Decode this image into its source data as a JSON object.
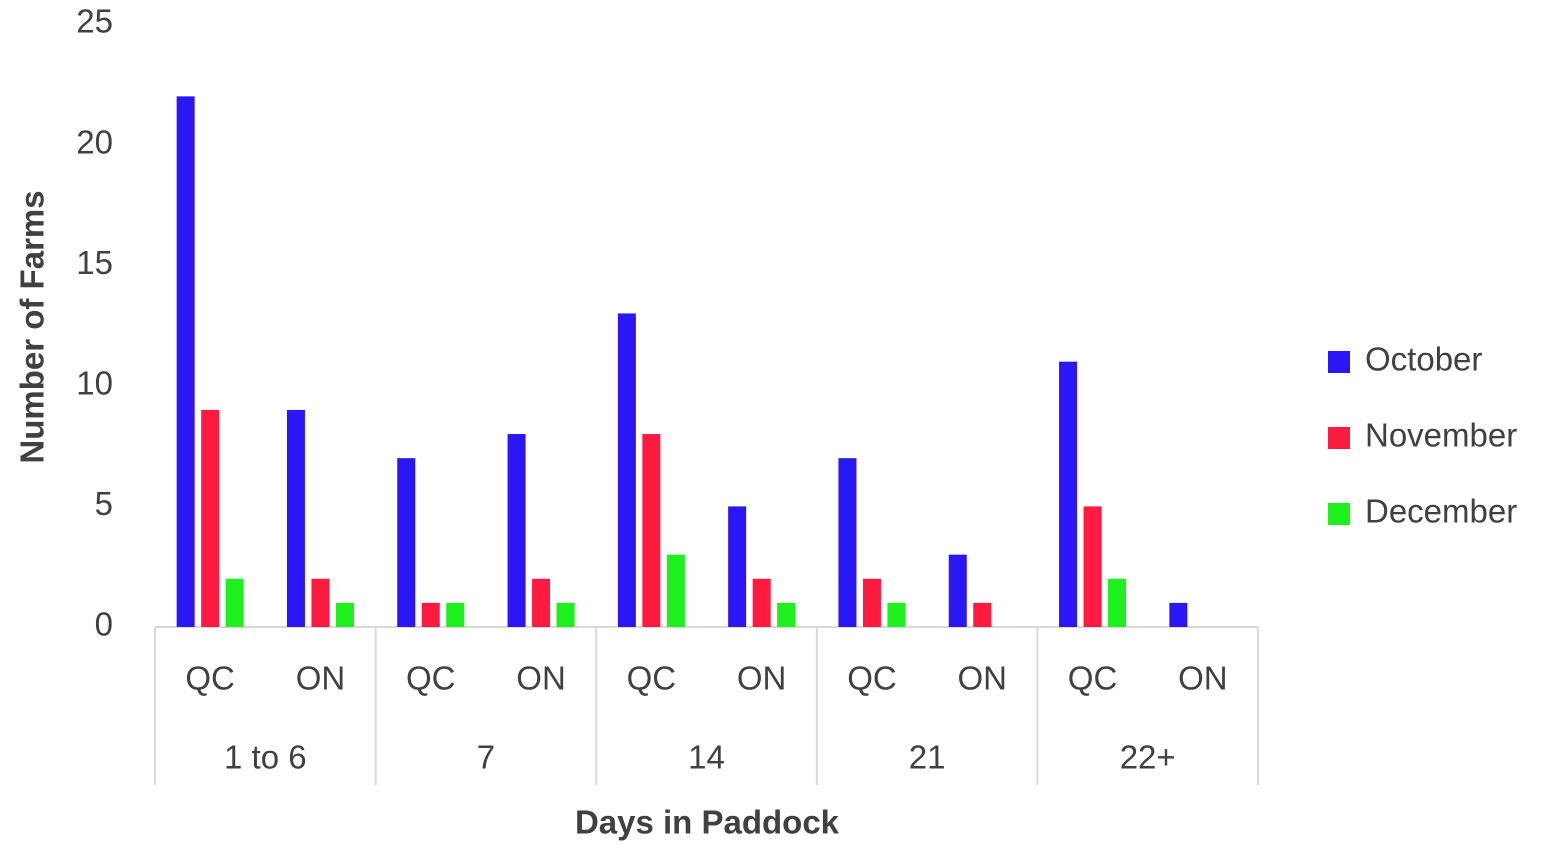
{
  "chart_data": {
    "type": "bar",
    "xlabel": "Days  in Paddock",
    "ylabel": "Number of Farms",
    "categories": [
      "QC",
      "ON",
      "QC",
      "ON",
      "QC",
      "ON",
      "QC",
      "ON",
      "QC",
      "ON"
    ],
    "groups": [
      "1 to 6",
      "7",
      "14",
      "21",
      "22+"
    ],
    "series": [
      {
        "name": "October",
        "color": "#2b16f5",
        "values": [
          22,
          9,
          7,
          8,
          13,
          5,
          7,
          3,
          11,
          1
        ]
      },
      {
        "name": "November",
        "color": "#ff1a40",
        "values": [
          9,
          2,
          1,
          2,
          8,
          2,
          2,
          1,
          5,
          0
        ]
      },
      {
        "name": "December",
        "color": "#1ef01e",
        "values": [
          2,
          1,
          1,
          1,
          3,
          1,
          1,
          0,
          2,
          0
        ]
      }
    ],
    "ylim": [
      0,
      25
    ],
    "yticks": [
      0,
      5,
      10,
      15,
      20,
      25
    ],
    "grid": false,
    "legend": "right"
  }
}
